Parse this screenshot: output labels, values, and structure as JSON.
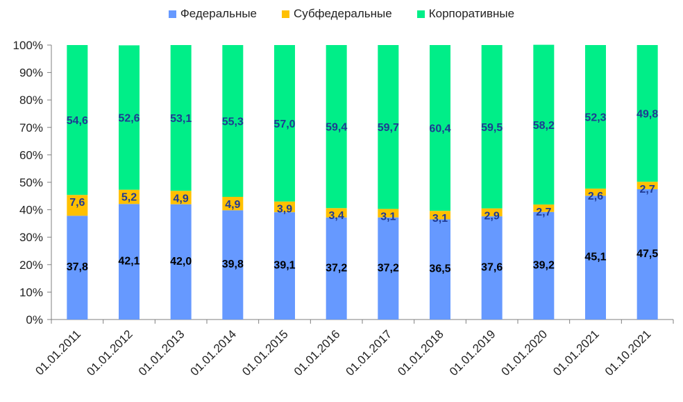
{
  "chart_data": {
    "type": "bar",
    "stacked": true,
    "percent": true,
    "categories": [
      "01.01.2011",
      "01.01.2012",
      "01.01.2013",
      "01.01.2014",
      "01.01.2015",
      "01.01.2016",
      "01.01.2017",
      "01.01.2018",
      "01.01.2019",
      "01.01.2020",
      "01.01.2021",
      "01.10.2021"
    ],
    "series": [
      {
        "name": "Федеральные",
        "color": "#6699ff",
        "label_color": "#000000",
        "values": [
          37.8,
          42.1,
          42.0,
          39.8,
          39.1,
          37.2,
          37.2,
          36.5,
          37.6,
          39.2,
          45.1,
          47.5
        ],
        "labels": [
          "37,8",
          "42,1",
          "42,0",
          "39,8",
          "39,1",
          "37,2",
          "37,2",
          "36,5",
          "37,6",
          "39,2",
          "45,1",
          "47,5"
        ]
      },
      {
        "name": "Субфедеральные",
        "color": "#ffc000",
        "label_color": "#1f3a93",
        "values": [
          7.6,
          5.2,
          4.9,
          4.9,
          3.9,
          3.4,
          3.1,
          3.1,
          2.9,
          2.7,
          2.6,
          2.7
        ],
        "labels": [
          "7,6",
          "5,2",
          "4,9",
          "4,9",
          "3,9",
          "3,4",
          "3,1",
          "3,1",
          "2,9",
          "2,7",
          "2,6",
          "2,7"
        ]
      },
      {
        "name": "Корпоративные",
        "color": "#00ee88",
        "label_color": "#1f3a93",
        "values": [
          54.6,
          52.6,
          53.1,
          55.3,
          57.0,
          59.4,
          59.7,
          60.4,
          59.5,
          58.2,
          52.3,
          49.8
        ],
        "labels": [
          "54,6",
          "52,6",
          "53,1",
          "55,3",
          "57,0",
          "59,4",
          "59,7",
          "60,4",
          "59,5",
          "58,2",
          "52,3",
          "49,8"
        ]
      }
    ],
    "ylim": [
      0,
      100
    ],
    "yticks": [
      "0%",
      "10%",
      "20%",
      "30%",
      "40%",
      "50%",
      "60%",
      "70%",
      "80%",
      "90%",
      "100%"
    ],
    "legend_position": "top",
    "grid": false
  }
}
